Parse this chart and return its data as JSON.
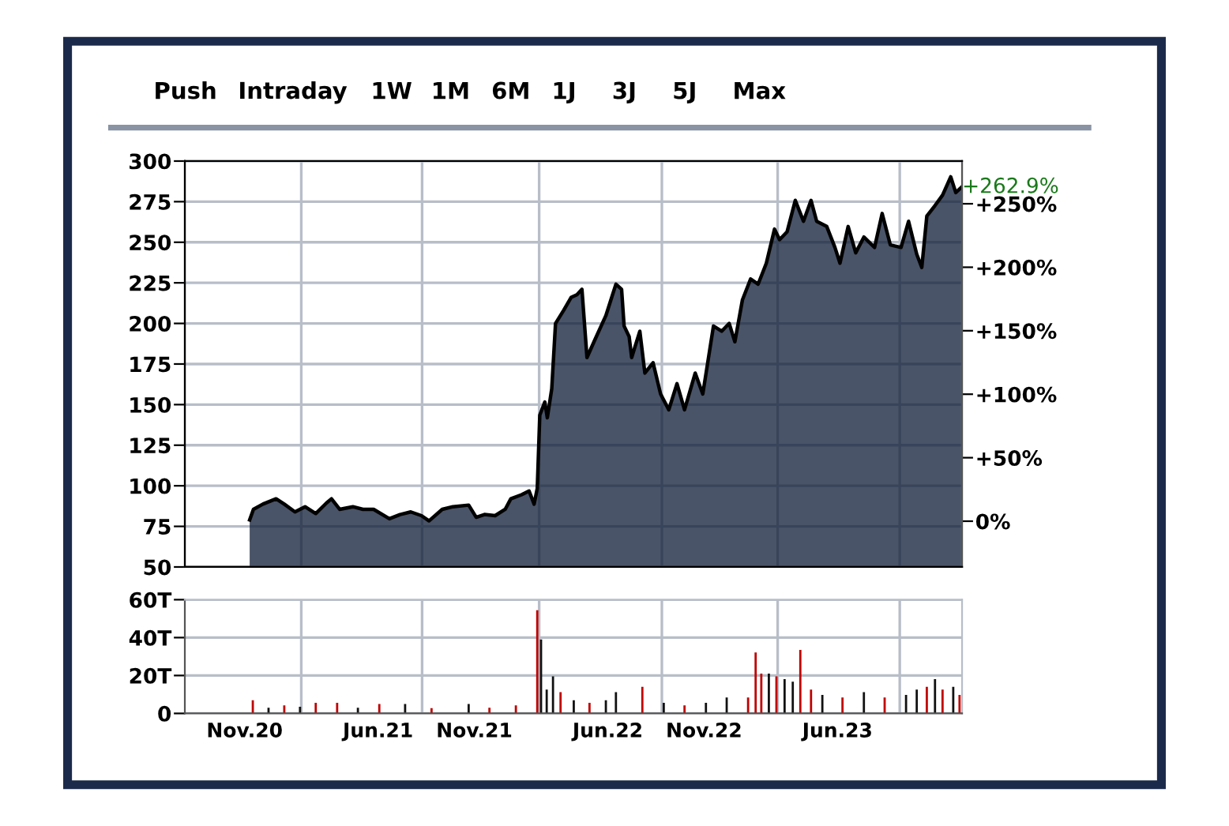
{
  "chart_data": [
    {
      "type": "area",
      "color": "#0d1b36",
      "x": [
        "2020-11-09",
        "2020-11-15",
        "2020-11-30",
        "2020-12-21",
        "2021-01-03",
        "2021-01-20",
        "2021-02-05",
        "2021-02-22",
        "2021-03-11",
        "2021-03-19",
        "2021-04-01",
        "2021-04-22",
        "2021-05-08",
        "2021-05-25",
        "2021-06-19",
        "2021-07-06",
        "2021-07-23",
        "2021-08-09",
        "2021-08-21",
        "2021-09-11",
        "2021-09-28",
        "2021-10-23",
        "2021-11-04",
        "2021-11-17",
        "2021-12-04",
        "2021-12-20",
        "2021-12-29",
        "2022-01-15",
        "2022-01-27",
        "2022-02-04",
        "2022-02-09",
        "2022-02-13",
        "2022-02-21",
        "2022-02-25",
        "2022-03-04",
        "2022-03-10",
        "2022-03-23",
        "2022-04-04",
        "2022-04-13",
        "2022-04-21",
        "2022-04-29",
        "2022-05-12",
        "2022-05-29",
        "2022-06-06",
        "2022-06-14",
        "2022-06-23",
        "2022-06-27",
        "2022-07-05",
        "2022-07-09",
        "2022-07-22",
        "2022-07-30",
        "2022-08-12",
        "2022-08-24",
        "2022-09-06",
        "2022-09-19",
        "2022-10-01",
        "2022-10-18",
        "2022-10-30",
        "2022-11-16",
        "2022-11-29",
        "2022-12-11",
        "2022-12-20",
        "2023-01-01",
        "2023-01-14",
        "2023-01-26",
        "2023-02-08",
        "2023-02-21",
        "2023-03-01",
        "2023-03-13",
        "2023-03-26",
        "2023-04-08",
        "2023-04-20",
        "2023-04-29",
        "2023-05-15",
        "2023-05-28",
        "2023-06-05",
        "2023-06-18",
        "2023-06-30",
        "2023-07-13",
        "2023-07-30",
        "2023-08-11",
        "2023-08-24",
        "2023-09-10",
        "2023-09-22",
        "2023-10-05",
        "2023-10-13",
        "2023-10-21",
        "2023-11-03",
        "2023-11-15",
        "2023-11-28",
        "2023-12-06",
        "2023-12-15"
      ],
      "values": [
        79.0,
        85.5,
        88.7,
        92.0,
        88.7,
        83.9,
        87.1,
        82.9,
        89.4,
        92.0,
        85.5,
        87.1,
        85.5,
        85.5,
        79.7,
        82.3,
        83.9,
        81.6,
        78.4,
        85.5,
        87.1,
        88.1,
        80.6,
        82.3,
        81.6,
        85.5,
        92.0,
        94.5,
        96.8,
        88.7,
        98.4,
        143.5,
        151.6,
        141.9,
        159.7,
        200.0,
        208.1,
        216.1,
        217.7,
        221.0,
        179.0,
        190.3,
        204.8,
        214.5,
        224.2,
        221.0,
        198.4,
        191.9,
        179.0,
        195.2,
        169.4,
        175.8,
        156.5,
        146.8,
        162.9,
        146.8,
        169.4,
        156.5,
        198.4,
        195.2,
        200.0,
        188.7,
        214.5,
        227.4,
        224.2,
        237.1,
        258.1,
        251.6,
        256.5,
        275.8,
        262.9,
        275.8,
        262.9,
        259.7,
        246.8,
        237.1,
        259.7,
        243.5,
        253.2,
        246.8,
        267.7,
        248.4,
        246.8,
        262.9,
        242.6,
        234.5,
        266.1,
        272.6,
        279.0,
        290.3,
        280.6,
        283.9
      ],
      "xlim": [
        "2020-07-29",
        "2023-12-16"
      ],
      "xticks": [
        {
          "value": "2021-01-30",
          "label": null
        },
        {
          "value": "2021-08-10",
          "label": null
        },
        {
          "value": "2022-02-12",
          "label": null
        },
        {
          "value": "2022-08-26",
          "label": null
        },
        {
          "value": "2023-02-26",
          "label": null
        },
        {
          "value": "2023-09-08",
          "label": null
        }
      ],
      "ylim": [
        50,
        300
      ],
      "yticks": [
        50,
        75,
        100,
        125,
        150,
        175,
        200,
        225,
        250,
        275,
        300
      ],
      "y2lim": [
        -36.06,
        283.63
      ],
      "y2ticks": [
        {
          "value": 0,
          "label": "0%"
        },
        {
          "value": 50,
          "label": "+50%"
        },
        {
          "value": 100,
          "label": "+100%"
        },
        {
          "value": 150,
          "label": "+150%"
        },
        {
          "value": 200,
          "label": "+200%"
        },
        {
          "value": 250,
          "label": "+250%"
        }
      ],
      "grid": true,
      "tick_labels": "y",
      "annotations": [
        "Push",
        "Intraday",
        "1W",
        "1M",
        "6M",
        "1J",
        "3J",
        "5J",
        "Max",
        {
          "text": "+262.9%",
          "x": "2023-12-15",
          "y": 283.9
        }
      ]
    },
    {
      "type": "bar",
      "x": [
        "2020-11-14",
        "2020-12-09",
        "2021-01-03",
        "2021-01-28",
        "2021-02-22",
        "2021-03-28",
        "2021-04-30",
        "2021-06-03",
        "2021-07-14",
        "2021-08-25",
        "2021-10-23",
        "2021-11-25",
        "2022-01-06",
        "2022-02-09",
        "2022-02-15",
        "2022-02-24",
        "2022-03-06",
        "2022-03-18",
        "2022-04-08",
        "2022-05-03",
        "2022-05-29",
        "2022-06-14",
        "2022-07-26",
        "2022-08-29",
        "2022-10-01",
        "2022-11-04",
        "2022-12-07",
        "2023-01-10",
        "2023-01-22",
        "2023-01-31",
        "2023-02-12",
        "2023-02-24",
        "2023-03-09",
        "2023-03-22",
        "2023-04-03",
        "2023-04-20",
        "2023-05-08",
        "2023-06-09",
        "2023-07-13",
        "2023-08-15",
        "2023-09-18",
        "2023-10-05",
        "2023-10-21",
        "2023-11-03",
        "2023-11-15",
        "2023-12-02",
        "2023-12-12"
      ],
      "values": [
        7.0,
        3.0,
        4.2,
        3.5,
        5.6,
        5.6,
        3.0,
        5.0,
        5.0,
        2.8,
        5.0,
        3.0,
        4.2,
        54.4,
        39.0,
        12.6,
        19.5,
        11.2,
        7.0,
        5.6,
        7.0,
        11.2,
        14.0,
        5.6,
        4.2,
        5.6,
        8.4,
        8.4,
        32.1,
        21.0,
        21.0,
        19.5,
        18.1,
        16.7,
        33.5,
        12.6,
        9.8,
        8.4,
        11.2,
        8.4,
        9.8,
        12.6,
        14.0,
        18.1,
        12.6,
        14.0,
        9.8
      ],
      "colors": [
        "#c00000",
        "#111111",
        "#c00000",
        "#111111",
        "#c00000",
        "#c00000",
        "#111111",
        "#c00000",
        "#111111",
        "#c00000",
        "#111111",
        "#c00000",
        "#c00000",
        "#c00000",
        "#111111",
        "#111111",
        "#111111",
        "#c00000",
        "#111111",
        "#c00000",
        "#111111",
        "#111111",
        "#c00000",
        "#111111",
        "#c00000",
        "#111111",
        "#111111",
        "#c00000",
        "#c00000",
        "#c00000",
        "#111111",
        "#c00000",
        "#111111",
        "#111111",
        "#c00000",
        "#c00000",
        "#111111",
        "#c00000",
        "#111111",
        "#c00000",
        "#111111",
        "#111111",
        "#c00000",
        "#111111",
        "#c00000",
        "#111111",
        "#c00000"
      ],
      "xlim": [
        "2020-07-29",
        "2023-12-16"
      ],
      "xticks": [
        {
          "value": "2021-01-30",
          "label": null
        },
        {
          "value": "2021-08-10",
          "label": null
        },
        {
          "value": "2022-02-12",
          "label": null
        },
        {
          "value": "2022-08-26",
          "label": null
        },
        {
          "value": "2023-02-26",
          "label": null
        },
        {
          "value": "2023-09-08",
          "label": null
        },
        {
          "value": "2020-11-01",
          "label": "Nov.20"
        },
        {
          "value": "2021-06-01",
          "label": "Jun.21"
        },
        {
          "value": "2021-11-01",
          "label": "Nov.21"
        },
        {
          "value": "2022-06-01",
          "label": "Jun.22"
        },
        {
          "value": "2022-11-01",
          "label": "Nov.22"
        },
        {
          "value": "2023-06-01",
          "label": "Jun.23"
        }
      ],
      "ylim": [
        0,
        60
      ],
      "yticks": [
        0,
        {
          "value": 20,
          "label": "20T"
        },
        {
          "value": 40,
          "label": "40T"
        },
        {
          "value": 60,
          "label": "60T"
        }
      ],
      "grid": true
    }
  ]
}
